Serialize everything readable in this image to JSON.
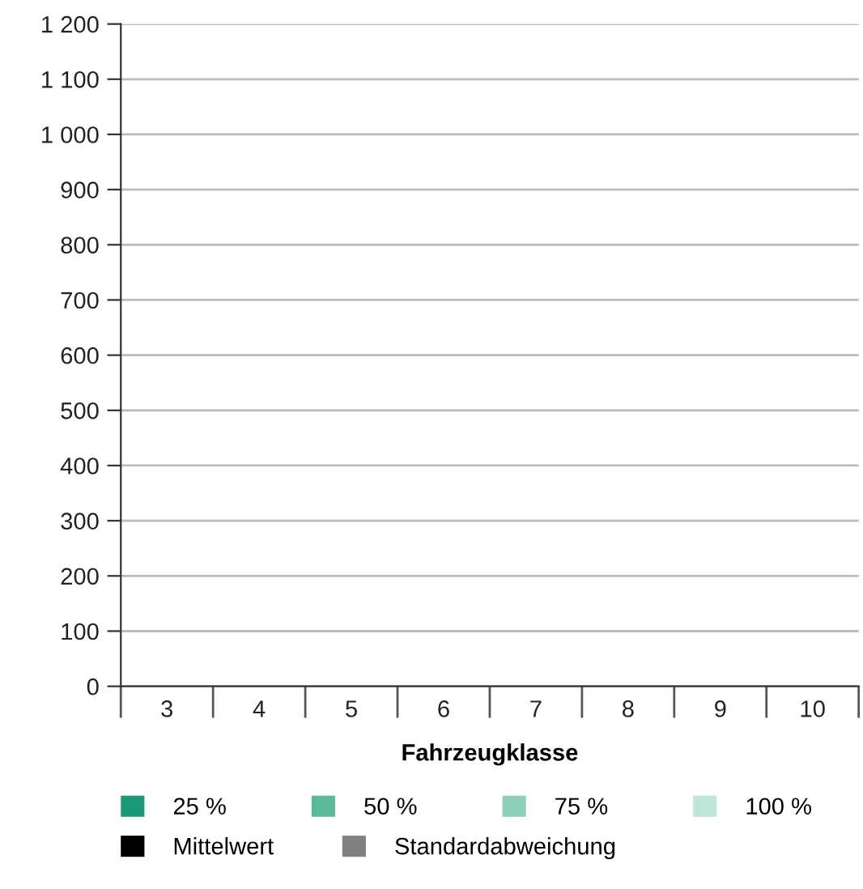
{
  "chart_data": {
    "type": "bar",
    "xlabel": "Fahrzeugklasse",
    "categories": [
      "3",
      "4",
      "5",
      "6",
      "7",
      "8",
      "9",
      "10"
    ],
    "series": [
      {
        "name": "25 %",
        "color": "#1a9a78",
        "values": [
          null,
          null,
          null,
          null,
          null,
          null,
          null,
          null
        ]
      },
      {
        "name": "Mittelwert",
        "color": "#000000",
        "values": [
          null,
          null,
          null,
          null,
          null,
          null,
          null,
          null
        ]
      },
      {
        "name": "50 %",
        "color": "#5cb99c",
        "values": [
          null,
          null,
          null,
          null,
          null,
          null,
          null,
          null
        ]
      },
      {
        "name": "Standardabweichung",
        "color": "#808080",
        "values": [
          null,
          null,
          null,
          null,
          null,
          null,
          null,
          null
        ]
      },
      {
        "name": "75 %",
        "color": "#8ed0b8",
        "values": [
          null,
          null,
          null,
          null,
          null,
          null,
          null,
          null
        ]
      },
      {
        "name": "100 %",
        "color": "#bfe6d8",
        "values": [
          null,
          null,
          null,
          null,
          null,
          null,
          null,
          null
        ]
      }
    ],
    "ylim": [
      0,
      1200
    ],
    "yticks": [
      0,
      100,
      200,
      300,
      400,
      500,
      600,
      700,
      800,
      900,
      {
        "value": 1000,
        "label": "1 000"
      },
      {
        "value": 1100,
        "label": "1 100"
      },
      {
        "value": 1200,
        "label": "1 200"
      }
    ],
    "grid": "y",
    "legend": "bottom"
  }
}
